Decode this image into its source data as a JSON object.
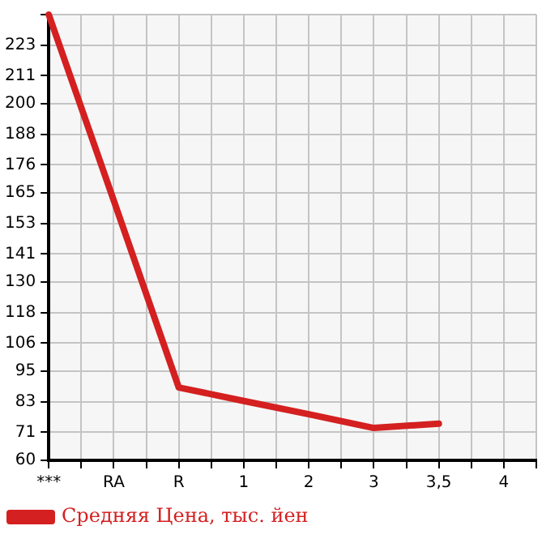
{
  "chart_data": {
    "type": "line",
    "categories": [
      "***",
      "RA",
      "R",
      "1",
      "2",
      "3",
      "3,5",
      "4"
    ],
    "series": [
      {
        "name": "Средняя Цена, тыс. йен",
        "color": "#d42020",
        "values": [
          235,
          162,
          88.6,
          83.3,
          78.1,
          72.7,
          74.4,
          null
        ]
      }
    ],
    "ylim": [
      60,
      235
    ],
    "yticks": [
      60,
      71,
      83,
      95,
      106,
      118,
      130,
      141,
      153,
      165,
      176,
      188,
      200,
      211,
      223,
      {
        "value": 235,
        "label": null
      }
    ],
    "grid": true,
    "legend": "bottom left",
    "marker": "none",
    "line_style": "solid"
  }
}
